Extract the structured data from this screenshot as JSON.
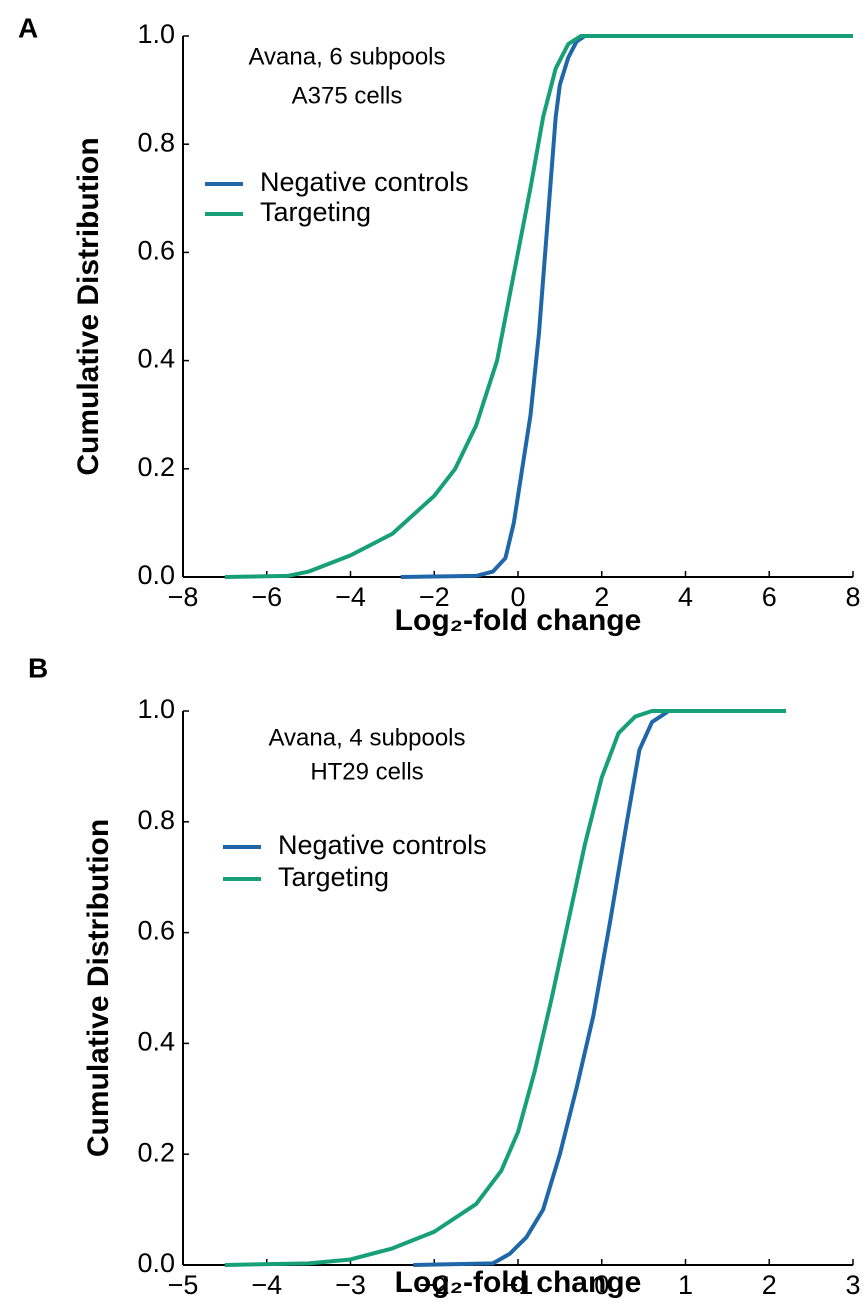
{
  "chart_data": [
    {
      "type": "line",
      "panel_label": "A",
      "annotation": [
        "Avana, 6 subpools",
        "A375 cells"
      ],
      "x_label": "Log₂-fold change",
      "y_label": "Cumulative Distribution",
      "xlim": [
        -8,
        8
      ],
      "ylim": [
        0,
        1
      ],
      "xticks": [
        {
          "value": -8,
          "label": "−8"
        },
        {
          "value": -6,
          "label": "−6"
        },
        {
          "value": -4,
          "label": "−4"
        },
        {
          "value": -2,
          "label": "−2"
        },
        0,
        2,
        4,
        6,
        8
      ],
      "yticks": [
        {
          "value": 0,
          "label": "0.0"
        },
        0.2,
        0.4,
        0.6,
        0.8,
        {
          "value": 1,
          "label": "1.0"
        }
      ],
      "legend": "upper left",
      "series": [
        {
          "name": "Negative controls",
          "color": "#1f67a8",
          "x": [
            -2.8,
            -1.0,
            -0.6,
            -0.3,
            -0.1,
            0.1,
            0.3,
            0.5,
            0.6,
            0.7,
            0.8,
            0.9,
            1.0,
            1.2,
            1.4,
            1.6,
            2.0,
            3.0,
            8.0
          ],
          "values": [
            0,
            0.002,
            0.01,
            0.035,
            0.1,
            0.2,
            0.3,
            0.45,
            0.55,
            0.65,
            0.75,
            0.85,
            0.91,
            0.96,
            0.99,
            1.0,
            1.0,
            1.0,
            1.0
          ]
        },
        {
          "name": "Targeting",
          "color": "#17a077",
          "x": [
            -7,
            -5.5,
            -5,
            -4,
            -3,
            -2,
            -1.5,
            -1,
            -0.5,
            -0.2,
            0,
            0.3,
            0.6,
            0.9,
            1.2,
            1.5,
            2,
            8
          ],
          "values": [
            0,
            0.002,
            0.01,
            0.04,
            0.08,
            0.15,
            0.2,
            0.28,
            0.4,
            0.52,
            0.6,
            0.72,
            0.85,
            0.94,
            0.985,
            1.0,
            1.0,
            1.0
          ]
        }
      ]
    },
    {
      "type": "line",
      "panel_label": "B",
      "annotation": [
        "Avana, 4 subpools",
        "HT29 cells"
      ],
      "x_label": "Log₂-fold change",
      "y_label": "Cumulative Distribution",
      "xlim": [
        -5,
        3
      ],
      "ylim": [
        0,
        1
      ],
      "xticks": [
        {
          "value": -5,
          "label": "−5"
        },
        {
          "value": -4,
          "label": "−4"
        },
        {
          "value": -3,
          "label": "−3"
        },
        {
          "value": -2,
          "label": "−2"
        },
        {
          "value": -1,
          "label": "−1"
        },
        0,
        1,
        2,
        3
      ],
      "yticks": [
        {
          "value": 0,
          "label": "0.0"
        },
        0.2,
        0.4,
        0.6,
        0.8,
        {
          "value": 1,
          "label": "1.0"
        }
      ],
      "legend": "upper left",
      "series": [
        {
          "name": "Negative controls",
          "color": "#1f67a8",
          "x": [
            -2.25,
            -1.3,
            -1.1,
            -0.9,
            -0.7,
            -0.5,
            -0.3,
            -0.1,
            0.1,
            0.3,
            0.45,
            0.6,
            0.8,
            2.2
          ],
          "values": [
            0,
            0.003,
            0.02,
            0.05,
            0.1,
            0.2,
            0.32,
            0.45,
            0.62,
            0.8,
            0.93,
            0.98,
            1.0,
            1.0
          ]
        },
        {
          "name": "Targeting",
          "color": "#17a077",
          "x": [
            -4.5,
            -3.5,
            -3,
            -2.5,
            -2,
            -1.5,
            -1.2,
            -1,
            -0.8,
            -0.6,
            -0.4,
            -0.2,
            0,
            0.2,
            0.4,
            0.6,
            2.2
          ],
          "values": [
            0,
            0.003,
            0.01,
            0.03,
            0.06,
            0.11,
            0.17,
            0.24,
            0.35,
            0.48,
            0.62,
            0.76,
            0.88,
            0.96,
            0.99,
            1.0,
            1.0
          ]
        }
      ]
    }
  ]
}
